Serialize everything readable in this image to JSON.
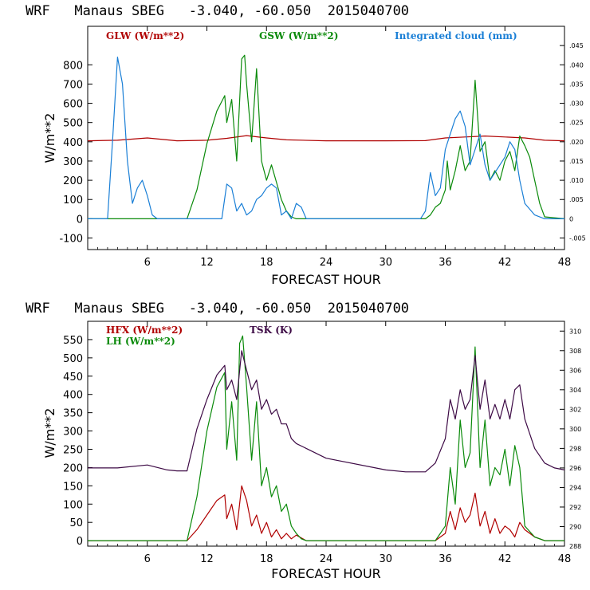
{
  "chart_data": [
    {
      "type": "line",
      "title": "WRF   Manaus SBEG   -3.040, -60.050  2015040700",
      "xlabel": "FORECAST HOUR",
      "ylabel": "W/m**2",
      "xlim": [
        0,
        48
      ],
      "ylim": [
        -160,
        1000
      ],
      "xticks": [
        6,
        12,
        18,
        24,
        30,
        36,
        42,
        48
      ],
      "yticks": [
        -100,
        0,
        100,
        200,
        300,
        400,
        500,
        600,
        700,
        800
      ],
      "right_axis": {
        "lim": [
          -0.008,
          0.05
        ],
        "ticks": [
          -0.005,
          0,
          0.005,
          0.01,
          0.015,
          0.02,
          0.025,
          0.03,
          0.035,
          0.04,
          0.045
        ],
        "labels": [
          "-.005",
          "0",
          ".005",
          ".010",
          ".015",
          ".020",
          ".025",
          ".030",
          ".035",
          ".040",
          ".045"
        ]
      },
      "series": [
        {
          "name": "GLW (W/m**2)",
          "color": "#b00000",
          "axis": "left",
          "x": [
            0,
            3,
            6,
            9,
            12,
            14,
            16,
            18,
            20,
            24,
            30,
            34,
            36,
            38,
            40,
            42,
            44,
            46,
            48
          ],
          "y": [
            405,
            408,
            420,
            405,
            408,
            418,
            432,
            420,
            410,
            405,
            405,
            406,
            420,
            425,
            430,
            425,
            420,
            408,
            405
          ]
        },
        {
          "name": "GSW (W/m**2)",
          "color": "#0a8a0a",
          "axis": "left",
          "x": [
            0,
            10,
            11,
            12,
            13,
            13.8,
            14,
            14.5,
            15,
            15.5,
            15.8,
            16,
            16.5,
            17,
            17.5,
            18,
            18.5,
            19,
            19.5,
            20,
            20.5,
            21,
            21.5,
            22,
            34,
            34.5,
            35,
            35.5,
            36,
            36.2,
            36.5,
            37,
            37.5,
            38,
            38.5,
            39,
            39.5,
            40,
            40.5,
            41,
            41.5,
            42,
            42.5,
            43,
            43.5,
            44,
            44.5,
            45,
            45.5,
            46,
            48
          ],
          "y": [
            0,
            0,
            150,
            390,
            560,
            640,
            500,
            620,
            300,
            830,
            850,
            700,
            400,
            780,
            300,
            200,
            280,
            190,
            100,
            40,
            10,
            0,
            0,
            0,
            0,
            20,
            60,
            80,
            150,
            300,
            150,
            250,
            380,
            250,
            300,
            720,
            350,
            400,
            200,
            250,
            200,
            300,
            350,
            250,
            430,
            380,
            320,
            200,
            80,
            10,
            0
          ]
        },
        {
          "name": "Integrated cloud (mm)",
          "color": "#1a7fd6",
          "axis": "right",
          "x": [
            0,
            2,
            2.5,
            3,
            3.5,
            4,
            4.5,
            5,
            5.5,
            6,
            6.5,
            7,
            13.5,
            14,
            14.5,
            15,
            15.5,
            16,
            16.5,
            17,
            17.5,
            18,
            18.5,
            19,
            19.5,
            20,
            20.5,
            21,
            21.5,
            22,
            23,
            33.5,
            34,
            34.5,
            35,
            35.5,
            36,
            36.5,
            37,
            37.5,
            38,
            38.5,
            39,
            39.5,
            40,
            40.5,
            41,
            41.5,
            42,
            42.5,
            43,
            43.5,
            44,
            45,
            46,
            48
          ],
          "y": [
            0,
            0,
            0.02,
            0.042,
            0.035,
            0.015,
            0.004,
            0.008,
            0.01,
            0.006,
            0.001,
            0,
            0,
            0.009,
            0.008,
            0.002,
            0.004,
            0.001,
            0.002,
            0.005,
            0.006,
            0.008,
            0.009,
            0.008,
            0.001,
            0.002,
            0.0,
            0.004,
            0.003,
            0.0,
            0,
            0,
            0.002,
            0.012,
            0.006,
            0.008,
            0.018,
            0.022,
            0.026,
            0.028,
            0.024,
            0.014,
            0.018,
            0.022,
            0.014,
            0.01,
            0.012,
            0.014,
            0.016,
            0.02,
            0.018,
            0.01,
            0.004,
            0.001,
            0,
            0
          ]
        }
      ]
    },
    {
      "type": "line",
      "title": "WRF   Manaus SBEG   -3.040, -60.050  2015040700",
      "xlabel": "FORECAST HOUR",
      "ylabel": "W/m**2",
      "xlim": [
        0,
        48
      ],
      "ylim": [
        -15,
        600
      ],
      "xticks": [
        6,
        12,
        18,
        24,
        30,
        36,
        42,
        48
      ],
      "yticks": [
        0,
        50,
        100,
        150,
        200,
        250,
        300,
        350,
        400,
        450,
        500,
        550
      ],
      "right_axis": {
        "lim": [
          288,
          311
        ],
        "ticks": [
          288,
          290,
          292,
          294,
          296,
          298,
          300,
          302,
          304,
          306,
          308,
          310
        ],
        "labels": [
          "288",
          "290",
          "292",
          "294",
          "296",
          "298",
          "300",
          "302",
          "304",
          "306",
          "308",
          "310"
        ]
      },
      "series": [
        {
          "name": "HFX (W/m**2)",
          "color": "#b00000",
          "axis": "left",
          "x": [
            0,
            10,
            11,
            12,
            13,
            13.8,
            14,
            14.5,
            15,
            15.5,
            16,
            16.5,
            17,
            17.5,
            18,
            18.5,
            19,
            19.5,
            20,
            20.5,
            21,
            22,
            35,
            35.5,
            36,
            36.5,
            37,
            37.5,
            38,
            38.5,
            39,
            39.5,
            40,
            40.5,
            41,
            41.5,
            42,
            42.5,
            43,
            43.5,
            44,
            45,
            46,
            48
          ],
          "y": [
            0,
            0,
            30,
            70,
            110,
            125,
            60,
            100,
            30,
            150,
            110,
            40,
            70,
            20,
            50,
            10,
            30,
            5,
            20,
            5,
            15,
            0,
            0,
            10,
            20,
            80,
            30,
            90,
            50,
            70,
            130,
            40,
            80,
            20,
            60,
            20,
            40,
            30,
            10,
            50,
            30,
            10,
            0,
            0
          ]
        },
        {
          "name": "LH (W/m**2)",
          "color": "#0a8a0a",
          "axis": "left",
          "x": [
            0,
            10,
            11,
            12,
            13,
            13.8,
            14,
            14.5,
            15,
            15.3,
            15.6,
            16,
            16.5,
            17,
            17.5,
            18,
            18.5,
            19,
            19.5,
            20,
            20.5,
            21,
            21.5,
            22,
            35,
            35.5,
            36,
            36.5,
            37,
            37.5,
            38,
            38.5,
            39,
            39.5,
            40,
            40.5,
            41,
            41.5,
            42,
            42.5,
            43,
            43.5,
            44,
            45,
            46,
            48
          ],
          "y": [
            0,
            0,
            120,
            300,
            420,
            460,
            250,
            380,
            220,
            540,
            560,
            420,
            220,
            380,
            150,
            200,
            120,
            150,
            80,
            100,
            40,
            20,
            5,
            0,
            0,
            20,
            40,
            200,
            100,
            330,
            200,
            240,
            530,
            200,
            330,
            150,
            200,
            180,
            250,
            150,
            260,
            200,
            40,
            10,
            0,
            0
          ]
        },
        {
          "name": "TSK (K)",
          "color": "#3d0a45",
          "axis": "right",
          "x": [
            0,
            3,
            6,
            8,
            9,
            10,
            11,
            12,
            13,
            13.8,
            14,
            14.5,
            15,
            15.5,
            16,
            16.5,
            17,
            17.5,
            18,
            18.5,
            19,
            19.5,
            20,
            20.5,
            21,
            22,
            24,
            30,
            32,
            33,
            34,
            35,
            36,
            36.5,
            37,
            37.5,
            38,
            38.5,
            39,
            39.5,
            40,
            40.5,
            41,
            41.5,
            42,
            42.5,
            43,
            43.5,
            44,
            45,
            46,
            47,
            48
          ],
          "y": [
            296,
            296,
            296.3,
            295.8,
            295.7,
            295.7,
            300,
            303,
            305.5,
            306.5,
            304,
            305,
            303,
            308,
            306,
            304,
            305,
            302,
            303,
            301.5,
            302,
            300.5,
            300.5,
            299,
            298.5,
            298,
            297,
            295.8,
            295.6,
            295.6,
            295.6,
            296.5,
            299,
            303,
            301,
            304,
            302,
            303,
            307.5,
            302,
            305,
            301,
            302.5,
            301,
            303,
            301,
            304,
            304.5,
            301,
            298,
            296.5,
            296,
            295.8
          ]
        }
      ]
    }
  ]
}
